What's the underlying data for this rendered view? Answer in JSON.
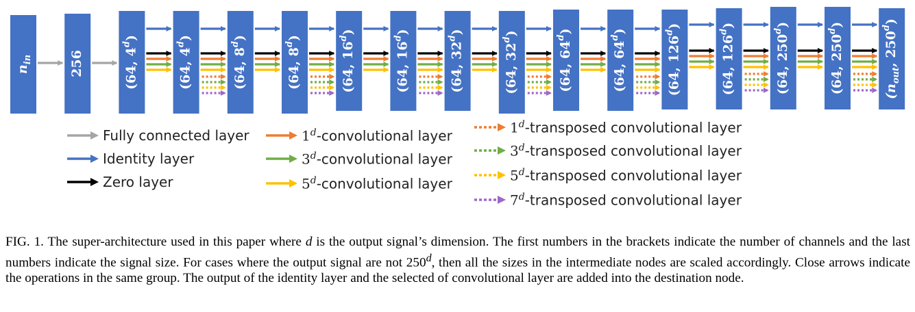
{
  "nodes": [
    {
      "label": "n_in"
    },
    {
      "label": "256"
    },
    {
      "label": "(64, 4^d)"
    },
    {
      "label": "(64, 4^d)"
    },
    {
      "label": "(64, 8^d)"
    },
    {
      "label": "(64, 8^d)"
    },
    {
      "label": "(64, 16^d)"
    },
    {
      "label": "(64, 16^d)"
    },
    {
      "label": "(64, 32^d)"
    },
    {
      "label": "(64, 32^d)"
    },
    {
      "label": "(64, 64^d)"
    },
    {
      "label": "(64, 64^d)"
    },
    {
      "label": "(64, 126^d)"
    },
    {
      "label": "(64, 126^d)"
    },
    {
      "label": "(64, 250^d)"
    },
    {
      "label": "(64, 250^d)"
    },
    {
      "label": "(n_out, 250^d)"
    }
  ],
  "colors": {
    "node": "#4472C4",
    "fully_connected": "#A5A5A5",
    "identity": "#4472C4",
    "zero": "#000000",
    "conv1": "#ED7D31",
    "conv3": "#70AD47",
    "conv5": "#FFC000",
    "tconv7": "#9E67C8"
  },
  "legend": {
    "fully_connected": "Fully connected layer",
    "identity": "Identity layer",
    "zero": "Zero layer",
    "conv1_num": "1",
    "conv3_num": "3",
    "conv5_num": "5",
    "conv_suffix": "-convolutional layer",
    "tconv1_num": "1",
    "tconv3_num": "3",
    "tconv5_num": "5",
    "tconv7_num": "7",
    "tconv_suffix": "-transposed convolutional layer",
    "exponent": "d"
  },
  "caption": {
    "p1": "FIG. 1. The super-architecture used in this paper where ",
    "var_d": "d",
    "p2": " is the output signal’s dimension. The first numbers in the brackets indicate the number of channels and the last numbers indicate the signal size. For cases where the output signal are not 250",
    "p3": ", then all the sizes in the intermediate nodes are scaled accordingly. Close arrows indicate the operations in the same group. The output of the identity layer and the selected of convolutional layer are added into the destination node."
  }
}
